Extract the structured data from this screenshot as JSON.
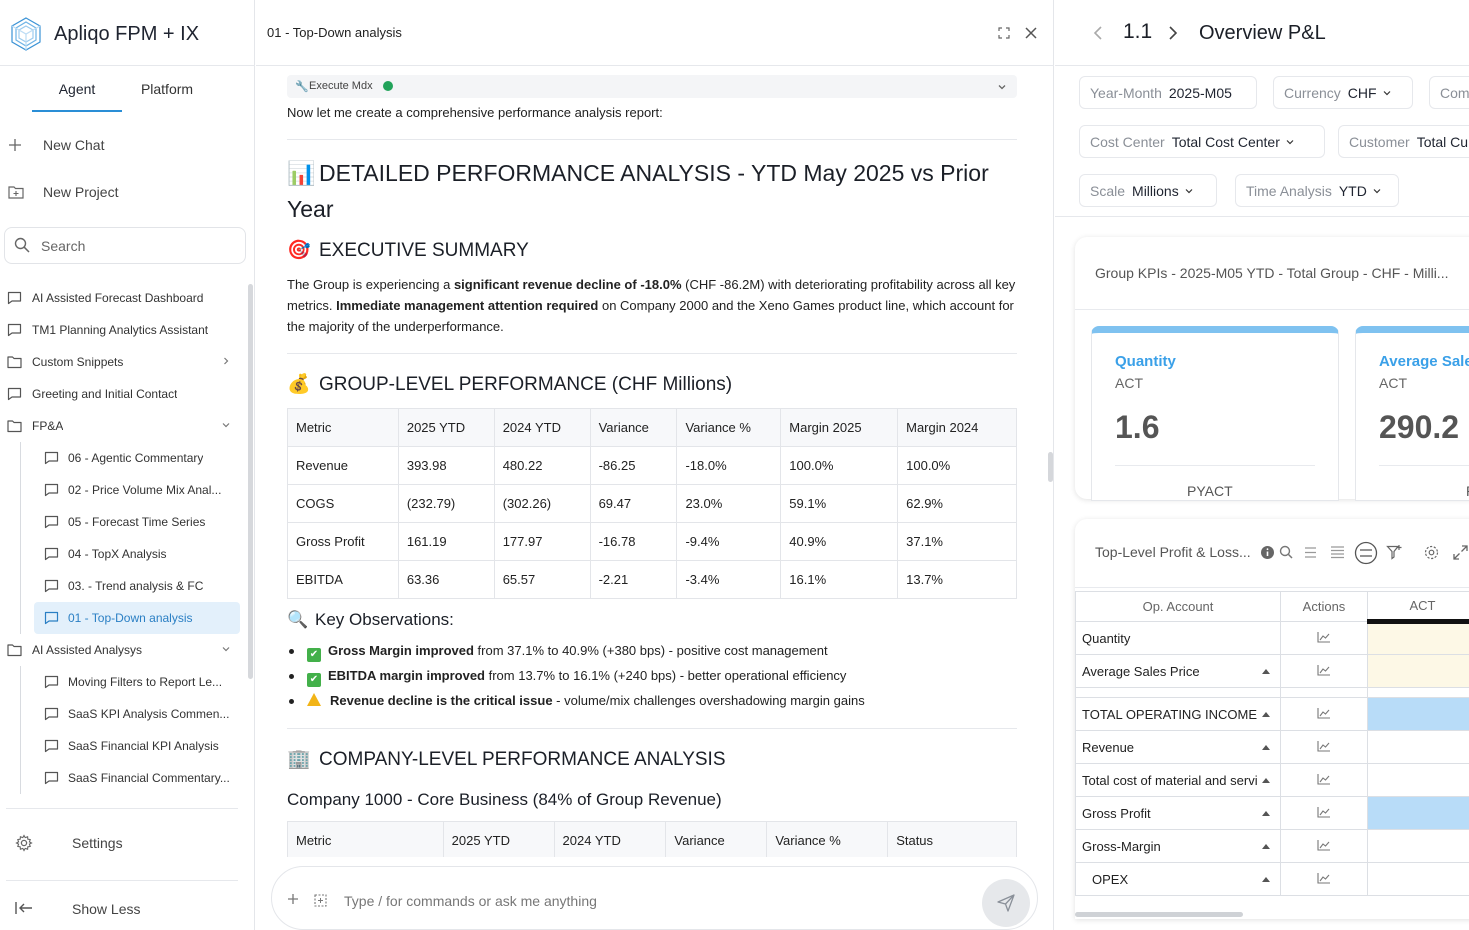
{
  "app": {
    "name": "Apliqo FPM + IX",
    "tabs": [
      "Agent",
      "Platform"
    ],
    "new_chat": "New Chat",
    "new_project": "New Project",
    "search_placeholder": "Search",
    "settings": "Settings",
    "show_less": "Show Less"
  },
  "nav": {
    "items": [
      {
        "label": "AI Assisted Forecast Dashboard",
        "icon": "chat-icon"
      },
      {
        "label": "TM1 Planning Analytics Assistant",
        "icon": "chat-icon"
      },
      {
        "label": "Custom Snippets",
        "icon": "folder-icon"
      },
      {
        "label": "Greeting and Initial Contact",
        "icon": "chat-icon"
      },
      {
        "label": "FP&A",
        "icon": "folder-icon"
      },
      {
        "label": "06 - Agentic Commentary",
        "icon": "chat-icon"
      },
      {
        "label": "02 - Price Volume Mix Anal...",
        "icon": "chat-icon"
      },
      {
        "label": "05 - Forecast Time Series",
        "icon": "chat-icon"
      },
      {
        "label": "04 - TopX Analysis",
        "icon": "chat-icon"
      },
      {
        "label": "03. - Trend analysis & FC",
        "icon": "chat-icon"
      },
      {
        "label": "01 - Top-Down analysis",
        "icon": "chat-icon"
      },
      {
        "label": "AI Assisted Analysys",
        "icon": "folder-icon"
      },
      {
        "label": "Moving Filters to Report Le...",
        "icon": "chat-icon"
      },
      {
        "label": "SaaS KPI Analysis Commen...",
        "icon": "chat-icon"
      },
      {
        "label": "SaaS Financial KPI Analysis",
        "icon": "chat-icon"
      },
      {
        "label": "SaaS Financial Commentary...",
        "icon": "chat-icon"
      }
    ]
  },
  "chat": {
    "title": "01 - Top-Down analysis",
    "tool_label": "Execute Mdx",
    "intro": "Now let me create a comprehensive performance analysis report:",
    "h1": "DETAILED PERFORMANCE ANALYSIS - YTD May 2025 vs Prior Year",
    "exec_title": "EXECUTIVE SUMMARY",
    "exec": {
      "p1": "The Group is experiencing a ",
      "b1": "significant revenue decline of -18.0%",
      "p2": " (CHF -86.2M) with deteriorating profitability across all key metrics. ",
      "b2": "Immediate management attention required",
      "p3": " on Company 2000 and the Xeno Games product line, which account for the majority of the underperformance."
    },
    "group_title": "GROUP-LEVEL PERFORMANCE (CHF Millions)",
    "group_table": {
      "headers": [
        "Metric",
        "2025 YTD",
        "2024 YTD",
        "Variance",
        "Variance %",
        "Margin 2025",
        "Margin 2024"
      ],
      "rows": [
        [
          "Revenue",
          "393.98",
          "480.22",
          "-86.25",
          "-18.0%",
          "100.0%",
          "100.0%"
        ],
        [
          "COGS",
          "(232.79)",
          "(302.26)",
          "69.47",
          "23.0%",
          "59.1%",
          "62.9%"
        ],
        [
          "Gross Profit",
          "161.19",
          "177.97",
          "-16.78",
          "-9.4%",
          "40.9%",
          "37.1%"
        ],
        [
          "EBITDA",
          "63.36",
          "65.57",
          "-2.21",
          "-3.4%",
          "16.1%",
          "13.7%"
        ]
      ]
    },
    "obs_title": "Key Observations:",
    "observations": [
      {
        "bold": "Gross Margin improved",
        "rest": " from 37.1% to 40.9% (+380 bps) - positive cost management"
      },
      {
        "bold": "EBITDA margin improved",
        "rest": " from 13.7% to 16.1% (+240 bps) - better operational efficiency"
      },
      {
        "bold": "Revenue decline is the critical issue",
        "rest": " - volume/mix challenges overshadowing margin gains"
      }
    ],
    "company_title": "COMPANY-LEVEL PERFORMANCE ANALYSIS",
    "company_sub": "Company 1000 - Core Business (84% of Group Revenue)",
    "company_headers": [
      "Metric",
      "2025 YTD",
      "2024 YTD",
      "Variance",
      "Variance %",
      "Status"
    ],
    "composer_placeholder": "Type / for commands or ask me anything"
  },
  "right": {
    "page_num": "1.1",
    "title": "Overview P&L",
    "filters": [
      {
        "key": "Year-Month",
        "value": "2025-M05"
      },
      {
        "key": "Currency",
        "value": "CHF"
      },
      {
        "key": "Com",
        "value": ""
      },
      {
        "key": "Cost Center",
        "value": "Total Cost Center"
      },
      {
        "key": "Customer",
        "value": "Total Cu"
      },
      {
        "key": "Scale",
        "value": "Millions"
      },
      {
        "key": "Time Analysis",
        "value": "YTD"
      }
    ],
    "kpi_title": "Group KPIs - 2025-M05 YTD - Total Group - CHF - Milli...",
    "kpis": [
      {
        "name": "Quantity",
        "sub": "ACT",
        "value": "1.6",
        "foot": "PYACT"
      },
      {
        "name": "Average Sale",
        "sub": "ACT",
        "value": "290.2",
        "foot": "P"
      }
    ],
    "pl_title": "Top-Level Profit & Loss...",
    "pl_headers": [
      "Op. Account",
      "Actions",
      "ACT"
    ],
    "pl_rows": [
      {
        "label": "Quantity",
        "expand": false,
        "fill": "#fdf8e6"
      },
      {
        "label": "Average Sales Price",
        "expand": true,
        "fill": "#fdf8e6"
      },
      {
        "label": "TOTAL OPERATING INCOME",
        "expand": true,
        "fill": "#b8dcf8"
      },
      {
        "label": "Revenue",
        "expand": true,
        "fill": "#ffffff"
      },
      {
        "label": "Total cost of material and servi",
        "expand": true,
        "fill": "#ffffff"
      },
      {
        "label": "Gross Profit",
        "expand": true,
        "fill": "#b8dcf8"
      },
      {
        "label": "Gross-Margin",
        "expand": true,
        "fill": "#ffffff"
      },
      {
        "label": "OPEX",
        "expand": true,
        "fill": "#ffffff"
      }
    ]
  }
}
